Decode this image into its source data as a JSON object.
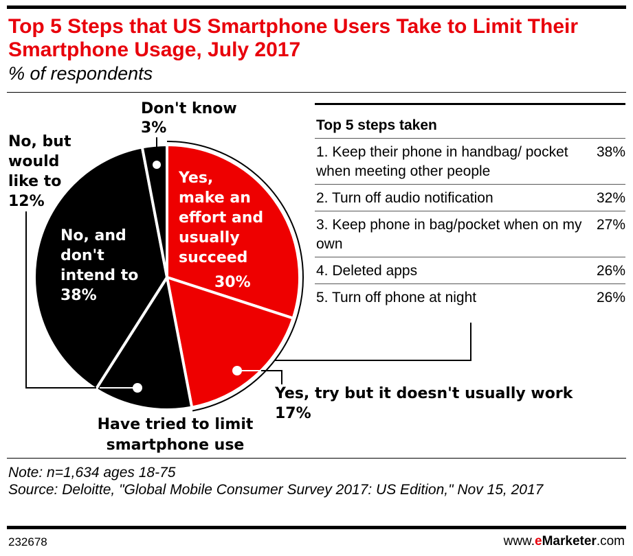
{
  "title": "Top 5 Steps that US Smartphone Users Take to Limit Their Smartphone Usage, July 2017",
  "subtitle": "% of respondents",
  "chart_data": {
    "type": "pie",
    "start": "top, clockwise",
    "slices": [
      {
        "label": "Yes, make an effort and usually succeed",
        "value": 30,
        "color": "#ee0000"
      },
      {
        "label": "Yes, try but it doesn't usually work",
        "value": 17,
        "color": "#ee0000"
      },
      {
        "label": "No, but would like to",
        "value": 12,
        "color": "#000000"
      },
      {
        "label": "No, and don't intend to",
        "value": 38,
        "color": "#000000"
      },
      {
        "label": "Don't know",
        "value": 3,
        "color": "#000000"
      }
    ],
    "labels": {
      "succeed": [
        "Yes,",
        "make an",
        "effort and",
        "usually",
        "succeed",
        "30%"
      ],
      "try": [
        "Yes, try but it doesn't usually work",
        "17%"
      ],
      "would_like": [
        "No, but",
        "would",
        "like to",
        "12%"
      ],
      "dont_intend": [
        "No, and",
        "don't",
        "intend to",
        "38%"
      ],
      "dont_know": [
        "Don't know",
        "3%"
      ]
    },
    "group_label": [
      "Have tried to limit",
      "smartphone use"
    ]
  },
  "steps": {
    "header": "Top 5 steps taken",
    "rows": [
      {
        "text": "1. Keep their phone in handbag/ pocket when meeting other people",
        "value": "38%"
      },
      {
        "text": "2. Turn off audio notification",
        "value": "32%"
      },
      {
        "text": "3. Keep phone in bag/pocket when on my own",
        "value": "27%"
      },
      {
        "text": "4. Deleted apps",
        "value": "26%"
      },
      {
        "text": "5. Turn off phone at night",
        "value": "26%"
      }
    ]
  },
  "note": "Note: n=1,634 ages 18-75",
  "source": "Source: Deloitte, \"Global Mobile Consumer Survey 2017: US Edition,\" Nov 15, 2017",
  "footer": {
    "id": "232678",
    "brand_pre": "www.",
    "brand_e": "e",
    "brand_main": "Marketer",
    "brand_post": ".com"
  }
}
